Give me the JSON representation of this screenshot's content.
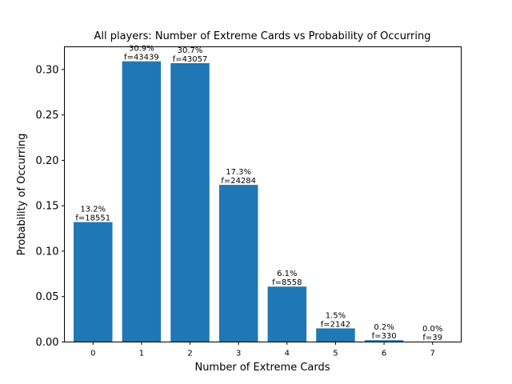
{
  "chart_data": {
    "type": "bar",
    "title": "All players: Number of Extreme Cards vs Probability of Occurring",
    "xlabel": "Number of Extreme Cards",
    "ylabel": "Probability of Occurring",
    "categories": [
      "0",
      "1",
      "2",
      "3",
      "4",
      "5",
      "6",
      "7"
    ],
    "values": [
      0.132,
      0.309,
      0.307,
      0.173,
      0.061,
      0.015,
      0.002,
      0.0003
    ],
    "percent_labels": [
      "13.2%",
      "30.9%",
      "30.7%",
      "17.3%",
      "6.1%",
      "1.5%",
      "0.2%",
      "0.0%"
    ],
    "freq_labels": [
      "f=18551",
      "f=43439",
      "f=43057",
      "f=24284",
      "f=8558",
      "f=2142",
      "f=330",
      "f=39"
    ],
    "yticks": [
      "0.00",
      "0.05",
      "0.10",
      "0.15",
      "0.20",
      "0.25",
      "0.30"
    ],
    "ylim": [
      0,
      0.325
    ],
    "xlim": [
      -0.59,
      7.59
    ],
    "bar_color": "#1f77b4",
    "grid": false
  }
}
